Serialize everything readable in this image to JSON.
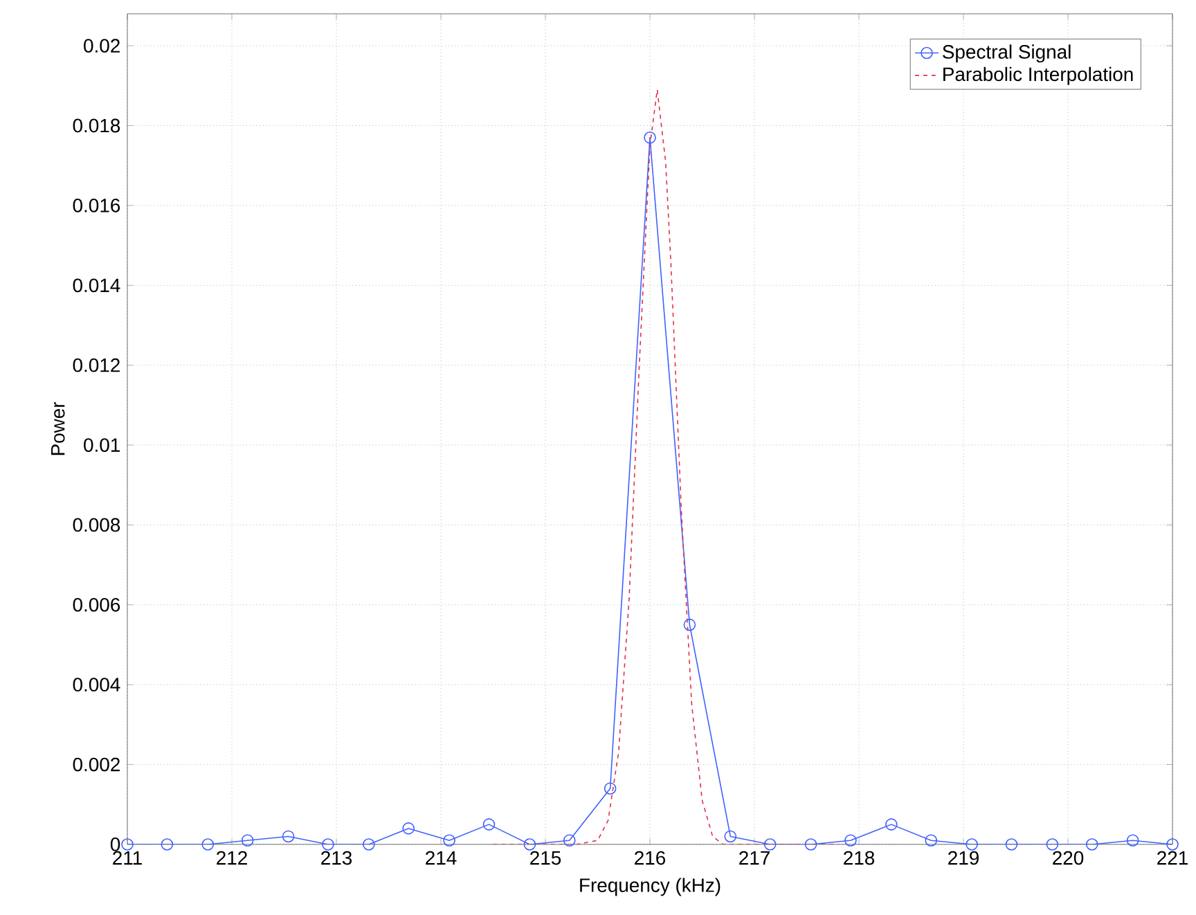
{
  "chart_data": {
    "type": "line",
    "xlabel": "Frequency (kHz)",
    "ylabel": "Power",
    "xlim": [
      211,
      221
    ],
    "ylim": [
      0,
      0.0208
    ],
    "xticks": [
      211,
      212,
      213,
      214,
      215,
      216,
      217,
      218,
      219,
      220,
      221
    ],
    "yticks": [
      0,
      0.002,
      0.004,
      0.006,
      0.008,
      0.01,
      0.012,
      0.014,
      0.016,
      0.018,
      0.02
    ],
    "grid": true,
    "legend": "top right",
    "series": [
      {
        "name": "Spectral Signal",
        "color": "#4060ff",
        "marker": "circle",
        "line_style": "solid",
        "x": [
          211,
          211.38,
          211.77,
          212.15,
          212.54,
          212.92,
          213.31,
          213.69,
          214.08,
          214.46,
          214.85,
          215.23,
          215.62,
          216.0,
          216.38,
          216.77,
          217.15,
          217.54,
          217.92,
          218.31,
          218.69,
          219.08,
          219.46,
          219.85,
          220.23,
          220.62,
          221
        ],
        "values": [
          0,
          0,
          0,
          0.0001,
          0.0002,
          0,
          0,
          0.0004,
          0.0001,
          0.0005,
          0,
          0.0001,
          0.0014,
          0.0177,
          0.0055,
          0.0002,
          0,
          0,
          0.0001,
          0.0005,
          0.0001,
          0,
          0,
          0,
          0,
          0.0001,
          0
        ]
      },
      {
        "name": "Parabolic Interpolation",
        "color": "#e0304a",
        "marker": "none",
        "line_style": "dashed",
        "x": [
          214.5,
          215.0,
          215.3,
          215.5,
          215.6,
          215.7,
          215.8,
          215.9,
          216.0,
          216.07,
          216.15,
          216.2,
          216.3,
          216.4,
          216.5,
          216.6,
          216.7,
          216.8,
          217.0,
          217.5,
          217.8
        ],
        "values": [
          0,
          0,
          0,
          0.0001,
          0.0006,
          0.0023,
          0.0061,
          0.0121,
          0.0175,
          0.0189,
          0.0171,
          0.0146,
          0.0084,
          0.0035,
          0.0011,
          0.0002,
          0,
          0,
          0,
          0,
          0
        ]
      }
    ]
  }
}
